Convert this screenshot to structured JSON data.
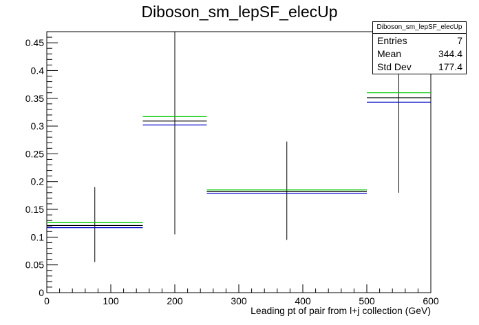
{
  "chart_data": {
    "type": "histogram",
    "title": "Diboson_sm_lepSF_elecUp",
    "xlabel": "Leading pt of pair from l+j collection (GeV)",
    "ylabel": "",
    "xlim": [
      0,
      600
    ],
    "ylim": [
      0,
      0.47
    ],
    "x_ticks": [
      "0",
      "100",
      "200",
      "300",
      "400",
      "500",
      "600"
    ],
    "y_ticks": [
      "0",
      "0.05",
      "0.1",
      "0.15",
      "0.2",
      "0.25",
      "0.3",
      "0.35",
      "0.4",
      "0.45"
    ],
    "grid": false,
    "bins": [
      {
        "x_low": 0,
        "x_high": 150,
        "center": 75,
        "err_low": 0.055,
        "err_high": 0.19
      },
      {
        "x_low": 150,
        "x_high": 250,
        "center": 200,
        "err_low": 0.105,
        "err_high": 0.47
      },
      {
        "x_low": 250,
        "x_high": 500,
        "center": 375,
        "err_low": 0.095,
        "err_high": 0.272
      },
      {
        "x_low": 500,
        "x_high": 600,
        "center": 550,
        "err_low": 0.18,
        "err_high": 0.47
      }
    ],
    "series": [
      {
        "color": "#00cc00",
        "values": [
          0.126,
          0.317,
          0.185,
          0.36
        ]
      },
      {
        "color": "#000000",
        "values": [
          0.121,
          0.309,
          0.182,
          0.351
        ]
      },
      {
        "color": "#0000cc",
        "values": [
          0.117,
          0.302,
          0.179,
          0.343
        ]
      }
    ],
    "stats": {
      "name": "Diboson_sm_lepSF_elecUp",
      "rows": [
        {
          "label": "Entries",
          "value": "7"
        },
        {
          "label": "Mean",
          "value": "344.4"
        },
        {
          "label": "Std Dev",
          "value": "177.4"
        }
      ]
    }
  }
}
